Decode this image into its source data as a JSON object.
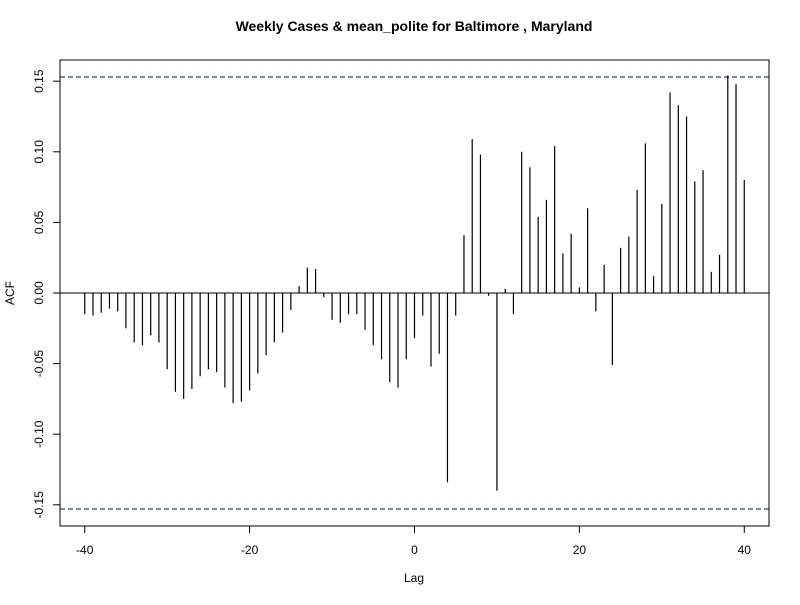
{
  "chart_data": {
    "type": "bar",
    "title": "Weekly Cases & mean_polite for Baltimore , Maryland",
    "xlabel": "Lag",
    "ylabel": "ACF",
    "xlim": [
      -43,
      43
    ],
    "ylim": [
      -0.165,
      0.165
    ],
    "x_ticks": [
      -40,
      -20,
      0,
      20,
      40
    ],
    "y_ticks": [
      -0.15,
      -0.1,
      -0.05,
      0.0,
      0.05,
      0.1,
      0.15
    ],
    "y_tick_labels": [
      "-0.15",
      "-0.10",
      "-0.05",
      "0.00",
      "0.05",
      "0.10",
      "0.15"
    ],
    "confidence_band": 0.153,
    "band_color": "#00008B",
    "grid": false,
    "lags": [
      -40,
      -39,
      -38,
      -37,
      -36,
      -35,
      -34,
      -33,
      -32,
      -31,
      -30,
      -29,
      -28,
      -27,
      -26,
      -25,
      -24,
      -23,
      -22,
      -21,
      -20,
      -19,
      -18,
      -17,
      -16,
      -15,
      -14,
      -13,
      -12,
      -11,
      -10,
      -9,
      -8,
      -7,
      -6,
      -5,
      -4,
      -3,
      -2,
      -1,
      0,
      1,
      2,
      3,
      4,
      5,
      6,
      7,
      8,
      9,
      10,
      11,
      12,
      13,
      14,
      15,
      16,
      17,
      18,
      19,
      20,
      21,
      22,
      23,
      24,
      25,
      26,
      27,
      28,
      29,
      30,
      31,
      32,
      33,
      34,
      35,
      36,
      37,
      38,
      39,
      40
    ],
    "values": [
      -0.015,
      -0.016,
      -0.014,
      -0.011,
      -0.013,
      -0.025,
      -0.035,
      -0.037,
      -0.03,
      -0.035,
      -0.054,
      -0.07,
      -0.075,
      -0.068,
      -0.059,
      -0.054,
      -0.056,
      -0.067,
      -0.078,
      -0.077,
      -0.069,
      -0.057,
      -0.044,
      -0.035,
      -0.028,
      -0.012,
      0.005,
      0.018,
      0.017,
      -0.003,
      -0.019,
      -0.021,
      -0.015,
      -0.015,
      -0.026,
      -0.037,
      -0.047,
      -0.063,
      -0.067,
      -0.047,
      -0.032,
      -0.016,
      -0.052,
      -0.043,
      -0.134,
      -0.016,
      0.041,
      0.109,
      0.098,
      -0.002,
      -0.14,
      0.003,
      -0.015,
      0.1,
      0.089,
      0.054,
      0.066,
      0.104,
      0.028,
      0.042,
      0.004,
      0.06,
      -0.013,
      0.02,
      -0.051,
      0.032,
      0.04,
      0.073,
      0.106,
      0.012,
      0.063,
      0.142,
      0.133,
      0.125,
      0.079,
      0.087,
      0.015,
      0.027,
      0.154,
      0.148,
      0.08
    ]
  }
}
